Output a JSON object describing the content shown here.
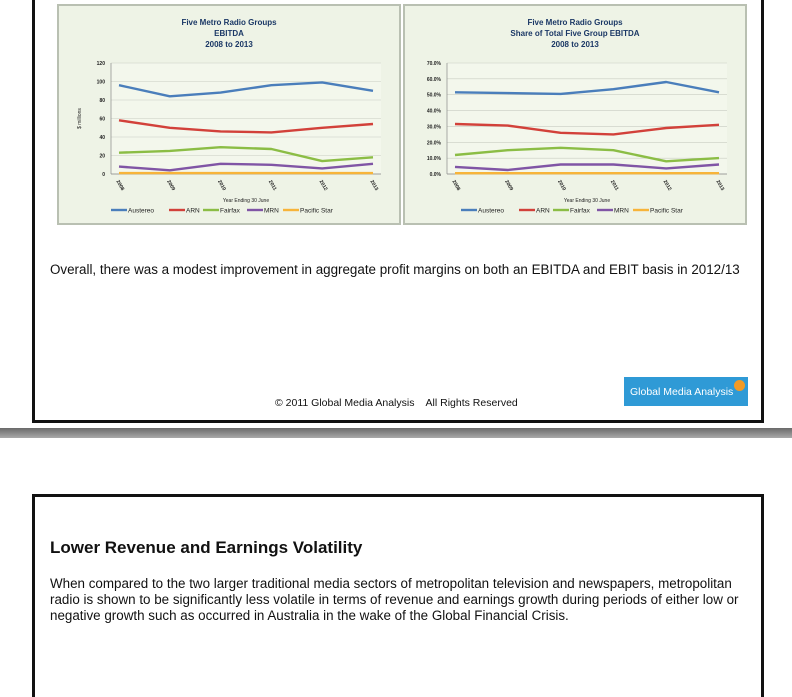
{
  "chart_data": [
    {
      "type": "line",
      "title_lines": [
        "Five Metro Radio Groups",
        "EBITDA",
        "2008 to 2013"
      ],
      "xlabel": "Year Ending 30 June",
      "ylabel": "$ millions",
      "x": [
        "2008",
        "2009",
        "2010",
        "2011",
        "2012",
        "2013"
      ],
      "y_ticks": [
        "0",
        "20",
        "40",
        "60",
        "80",
        "100",
        "120"
      ],
      "ylim": [
        0,
        120
      ],
      "grid": true,
      "legend_position": "bottom",
      "series": [
        {
          "name": "Austereo",
          "color": "#4a7ebb",
          "values": [
            96,
            84,
            88,
            96,
            99,
            90
          ]
        },
        {
          "name": "ARN",
          "color": "#d2413a",
          "values": [
            58,
            50,
            46,
            45,
            50,
            54
          ]
        },
        {
          "name": "Fairfax",
          "color": "#8bbd45",
          "values": [
            23,
            25,
            29,
            27,
            14,
            18
          ]
        },
        {
          "name": "MRN",
          "color": "#8055a5",
          "values": [
            8,
            4,
            11,
            10,
            6,
            11
          ]
        },
        {
          "name": "Pacific Star",
          "color": "#f7b43a",
          "values": [
            1,
            1,
            1,
            1,
            1,
            1
          ]
        }
      ]
    },
    {
      "type": "line",
      "title_lines": [
        "Five Metro Radio Groups",
        "Share of Total Five Group EBITDA",
        "2008 to 2013"
      ],
      "xlabel": "Year Ending 30 June",
      "ylabel": "",
      "x": [
        "2008",
        "2009",
        "2010",
        "2011",
        "2012",
        "2013"
      ],
      "y_ticks": [
        "0.0%",
        "10.0%",
        "20.0%",
        "30.0%",
        "40.0%",
        "50.0%",
        "60.0%",
        "70.0%"
      ],
      "ylim": [
        0,
        70
      ],
      "grid": true,
      "legend_position": "bottom",
      "series": [
        {
          "name": "Austereo",
          "color": "#4a7ebb",
          "values": [
            51.5,
            51,
            50.5,
            53.5,
            58,
            51.5
          ]
        },
        {
          "name": "ARN",
          "color": "#d2413a",
          "values": [
            31.5,
            30.5,
            26,
            25,
            29,
            31
          ]
        },
        {
          "name": "Fairfax",
          "color": "#8bbd45",
          "values": [
            12,
            15,
            16.5,
            15,
            8,
            10
          ]
        },
        {
          "name": "MRN",
          "color": "#8055a5",
          "values": [
            4.5,
            2.5,
            6,
            6,
            3.5,
            6
          ]
        },
        {
          "name": "Pacific Star",
          "color": "#f7b43a",
          "values": [
            0.5,
            0.5,
            0.5,
            0.5,
            0.5,
            0.5
          ]
        }
      ]
    }
  ],
  "text": {
    "summary": "Overall, there was a modest improvement in aggregate profit margins on both an EBITDA and EBIT basis in 2012/13",
    "footer": "© 2011 Global Media Analysis    All Rights Reserved",
    "logo": "Global Media Analysis",
    "heading": "Lower Revenue and Earnings Volatility",
    "body": "When compared to the two larger traditional media sectors of metropolitan television and newspapers, metropolitan radio is shown to be significantly less volatile in terms of revenue and earnings growth during periods of either low or negative growth such as occurred in Australia in the wake of the Global Financial Crisis."
  }
}
